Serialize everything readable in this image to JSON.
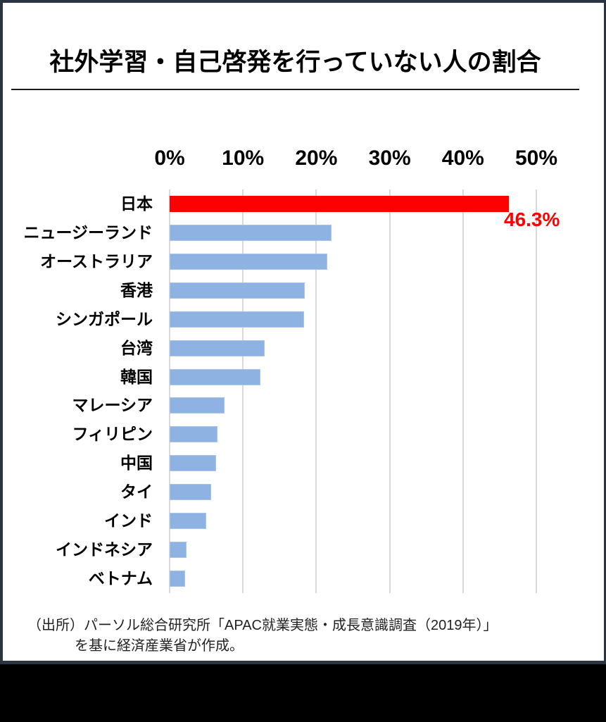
{
  "title": "社外学習・自己啓発を行っていない人の割合",
  "source": {
    "line1": "（出所）パーソル総合研究所「APAC就業実態・成長意識調査（2019年）」",
    "line2": "を基に経済産業省が作成。"
  },
  "chart_data": {
    "type": "bar",
    "orientation": "horizontal",
    "title": "社外学習・自己啓発を行っていない人の割合",
    "categories": [
      "日本",
      "ニュージーランド",
      "オーストラリア",
      "香港",
      "シンガポール",
      "台湾",
      "韓国",
      "マレーシア",
      "フィリピン",
      "中国",
      "タイ",
      "インド",
      "インドネシア",
      "ベトナム"
    ],
    "values": [
      46.3,
      22.1,
      21.5,
      18.4,
      18.3,
      13.0,
      12.4,
      7.5,
      6.5,
      6.3,
      5.7,
      5.0,
      2.3,
      2.1
    ],
    "highlight_index": 0,
    "data_label": {
      "text": "46.3%",
      "applies_to": "日本"
    },
    "x_axis": {
      "position": "top",
      "min": 0,
      "max": 50,
      "ticks": [
        "0%",
        "10%",
        "20%",
        "30%",
        "40%",
        "50%"
      ]
    },
    "grid": true,
    "legend": false,
    "colors": {
      "highlight_bar": "#ff0000",
      "default_bar": "#8eb3e2",
      "default_bar_border": "#a9c4e8",
      "gridline": "#d9d9d9",
      "data_label": "#ff0000",
      "text": "#000000"
    }
  }
}
